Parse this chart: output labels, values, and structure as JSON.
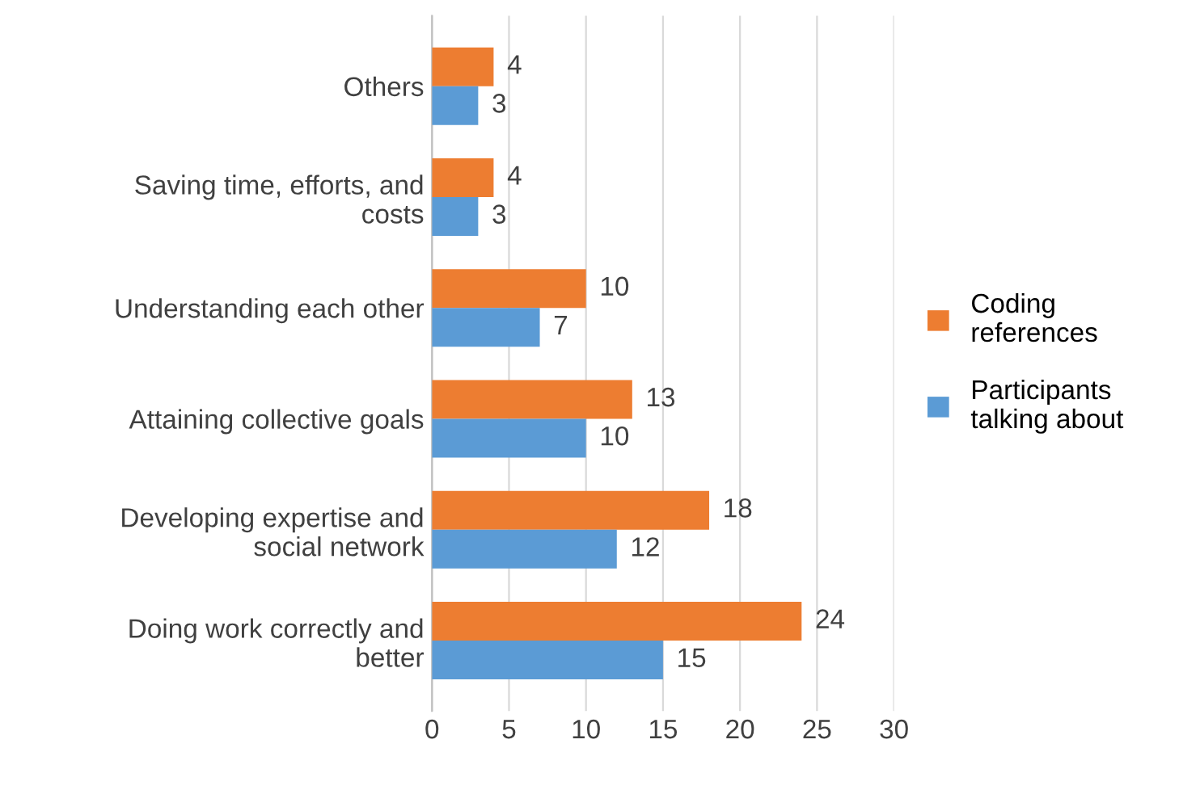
{
  "chart_data": {
    "type": "bar",
    "orientation": "horizontal",
    "categories": [
      "Others",
      "Saving time, efforts, and\ncosts",
      "Understanding each other",
      "Attaining collective goals",
      "Developing expertise and\nsocial network",
      "Doing work correctly and\nbetter"
    ],
    "series": [
      {
        "name": "Coding\nreferences",
        "color": "#ed7d31",
        "values": [
          4,
          4,
          10,
          13,
          18,
          24
        ]
      },
      {
        "name": "Participants\ntalking about",
        "color": "#5b9bd5",
        "values": [
          3,
          3,
          7,
          10,
          12,
          15
        ]
      }
    ],
    "xlim": [
      0,
      30
    ],
    "xticks": [
      0,
      5,
      10,
      15,
      20,
      25,
      30
    ],
    "grid": "x",
    "legend": "right",
    "data_labels": true
  }
}
